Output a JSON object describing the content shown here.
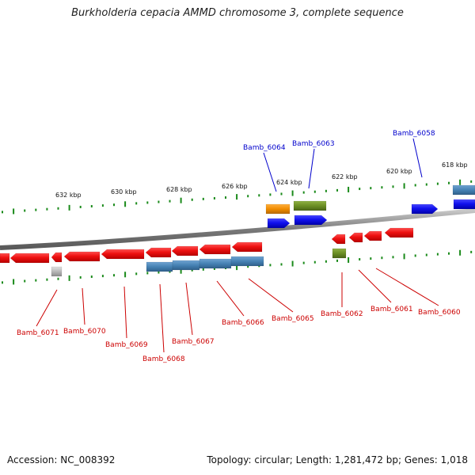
{
  "title": "Burkholderia cepacia AMMD chromosome 3, complete sequence",
  "footer": {
    "accession": "Accession: NC_008392",
    "summary": "Topology: circular; Length: 1,281,472 bp; Genes: 1,018"
  },
  "scale_labels": [
    "632 kbp",
    "630 kbp",
    "628 kbp",
    "626 kbp",
    "624 kbp",
    "622 kbp",
    "620 kbp",
    "618 kbp"
  ],
  "genes_upper": [
    "Bamb_6064",
    "Bamb_6063",
    "Bamb_6058"
  ],
  "genes_lower": [
    "Bamb_6071",
    "Bamb_6070",
    "Bamb_6069",
    "Bamb_6068",
    "Bamb_6067",
    "Bamb_6066",
    "Bamb_6065",
    "Bamb_6062",
    "Bamb_6061",
    "Bamb_6060"
  ],
  "colors": {
    "forward_label": "#0000cc",
    "reverse_label": "#cc0000",
    "tick": "#1a8a1a",
    "red_gene": "#ee1111",
    "blue_gene": "#1111ee",
    "steel_gene": "#4682b4",
    "olive_gene": "#6b8e23",
    "orange_gene": "#f08c00",
    "gray_gene": "#b8b8b8",
    "backbone": "#888888"
  }
}
